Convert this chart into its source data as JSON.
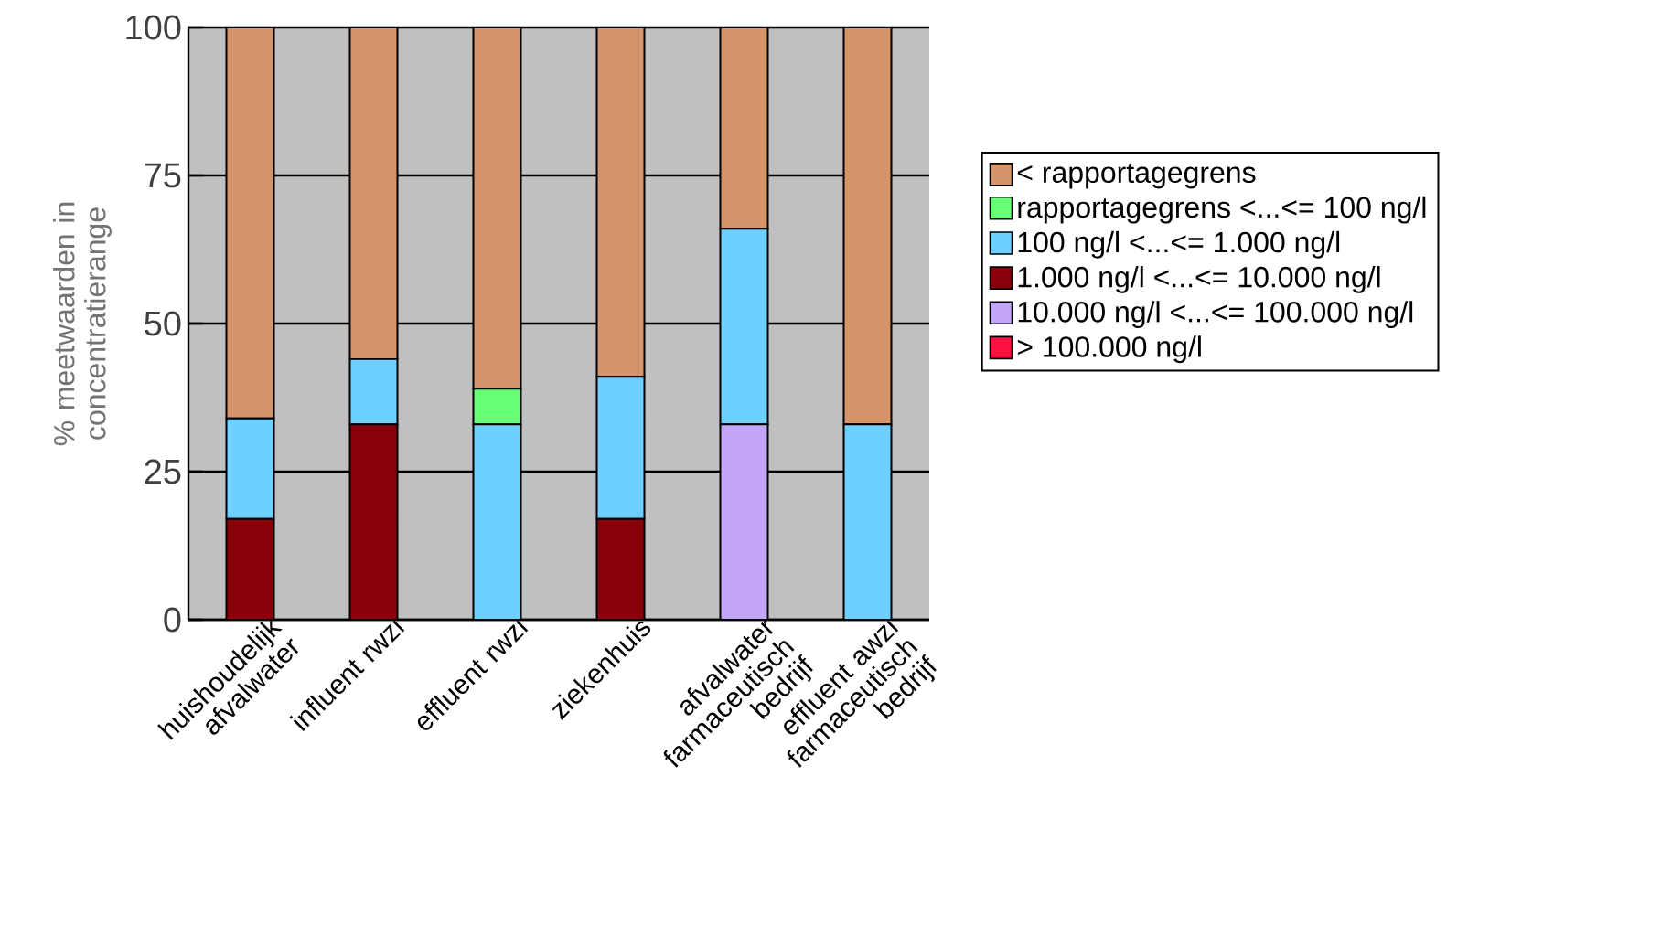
{
  "chart_data": {
    "type": "bar",
    "stacked": true,
    "ylabel": "% meetwaarden in concentratierange",
    "categories": [
      "huishoudelijk afvalwater",
      "influent rwzi",
      "effluent rwzi",
      "ziekenhuis",
      "afvalwater farmaceutisch bedrijf",
      "effluent awzi farmaceutisch bedrijf"
    ],
    "series": [
      {
        "name": "> 100.000 ng/l",
        "color": "#ff1040",
        "values": [
          0,
          0,
          0,
          0,
          0,
          0
        ]
      },
      {
        "name": "10.000 ng/l <...<= 100.000 ng/l",
        "color": "#c3a6f8",
        "values": [
          0,
          0,
          0,
          0,
          33,
          0
        ]
      },
      {
        "name": "1.000 ng/l <...<= 10.000 ng/l",
        "color": "#880008",
        "values": [
          17,
          33,
          0,
          17,
          0,
          0
        ]
      },
      {
        "name": "100 ng/l <...<= 1.000 ng/l",
        "color": "#6dd0ff",
        "values": [
          17,
          11,
          33,
          24,
          33,
          33
        ]
      },
      {
        "name": "rapportagegrens <...<= 100 ng/l",
        "color": "#66ff77",
        "values": [
          0,
          0,
          6,
          0,
          0,
          0
        ]
      },
      {
        "name": "< rapportagegrens",
        "color": "#d4956a",
        "values": [
          66,
          56,
          61,
          59,
          34,
          67
        ]
      }
    ],
    "ylim": [
      0,
      100
    ],
    "yticks": [
      0,
      25,
      50,
      75,
      100
    ],
    "grid": "y",
    "legend": "right"
  }
}
